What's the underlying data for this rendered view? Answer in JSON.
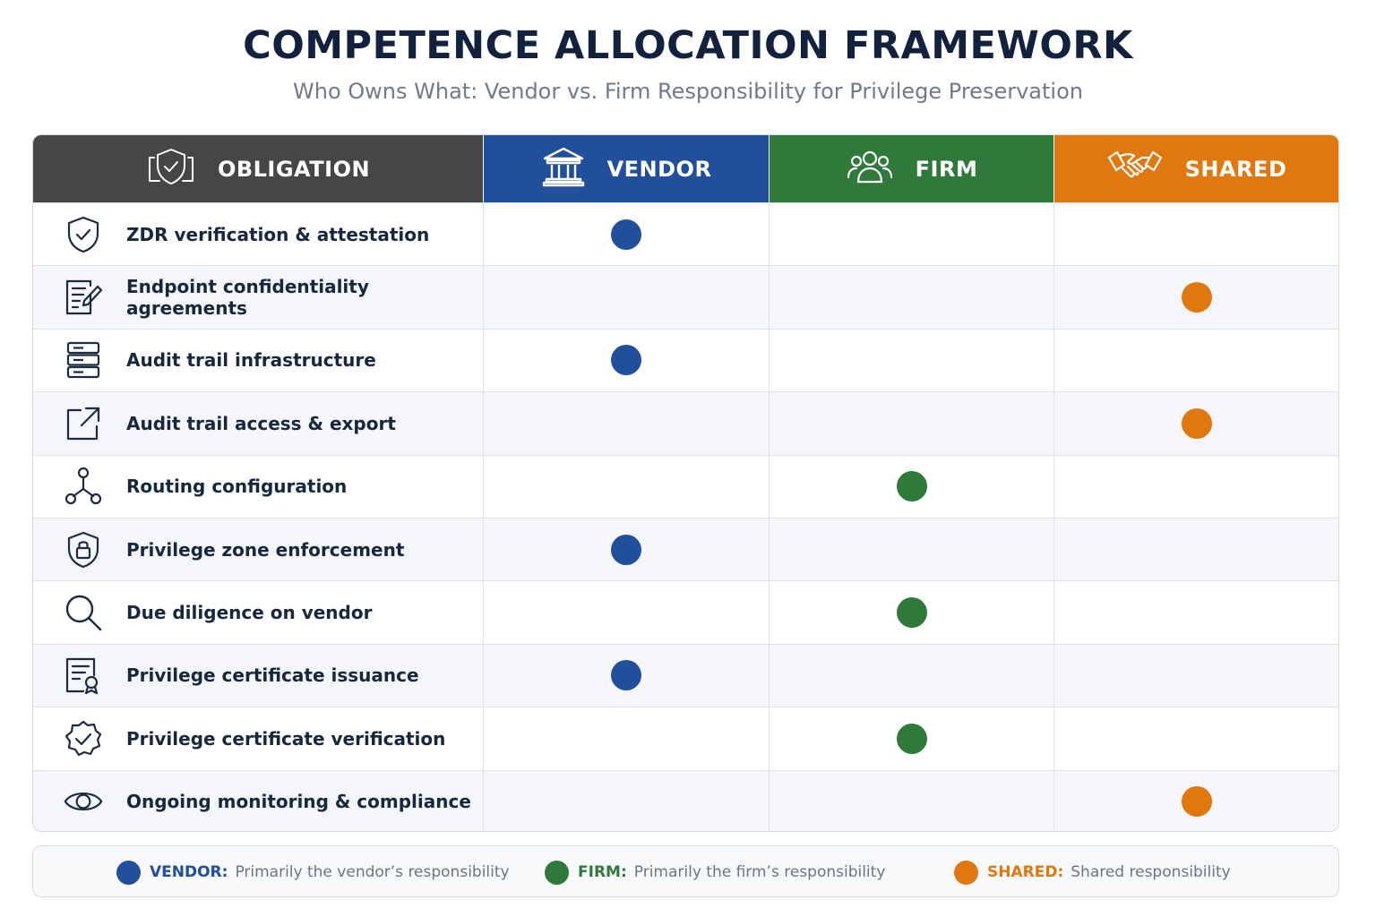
{
  "title": "COMPETENCE ALLOCATION FRAMEWORK",
  "subtitle": "Who Owns What: Vendor vs. Firm Responsibility for Privilege Preservation",
  "colors": {
    "vendor": "#214f9b",
    "firm": "#2f7a3a",
    "shared": "#e0780f",
    "obligation_header": "#464646"
  },
  "header": {
    "obligation": {
      "label": "OBLIGATION",
      "icon": "shield-check-icon"
    },
    "vendor": {
      "label": "VENDOR",
      "icon": "bank-building-icon"
    },
    "firm": {
      "label": "FIRM",
      "icon": "people-group-icon"
    },
    "shared": {
      "label": "SHARED",
      "icon": "handshake-icon"
    }
  },
  "rows": [
    {
      "label": "ZDR verification & attestation",
      "icon": "shield-check-icon",
      "owner": "vendor"
    },
    {
      "label": "Endpoint confidentiality agreements",
      "icon": "document-edit-icon",
      "owner": "shared"
    },
    {
      "label": "Audit trail infrastructure",
      "icon": "server-icon",
      "owner": "vendor"
    },
    {
      "label": "Audit trail access & export",
      "icon": "export-icon",
      "owner": "shared"
    },
    {
      "label": "Routing configuration",
      "icon": "network-icon",
      "owner": "firm"
    },
    {
      "label": "Privilege zone enforcement",
      "icon": "shield-lock-icon",
      "owner": "vendor"
    },
    {
      "label": "Due diligence on vendor",
      "icon": "search-icon",
      "owner": "firm"
    },
    {
      "label": "Privilege certificate issuance",
      "icon": "certificate-icon",
      "owner": "vendor"
    },
    {
      "label": "Privilege certificate verification",
      "icon": "badge-check-icon",
      "owner": "firm"
    },
    {
      "label": "Ongoing monitoring & compliance",
      "icon": "eye-icon",
      "owner": "shared"
    }
  ],
  "legend": {
    "vendor": {
      "key": "VENDOR:",
      "desc": "Primarily the vendor’s responsibility"
    },
    "firm": {
      "key": "FIRM:",
      "desc": "Primarily the firm’s responsibility"
    },
    "shared": {
      "key": "SHARED:",
      "desc": "Shared responsibility"
    }
  }
}
